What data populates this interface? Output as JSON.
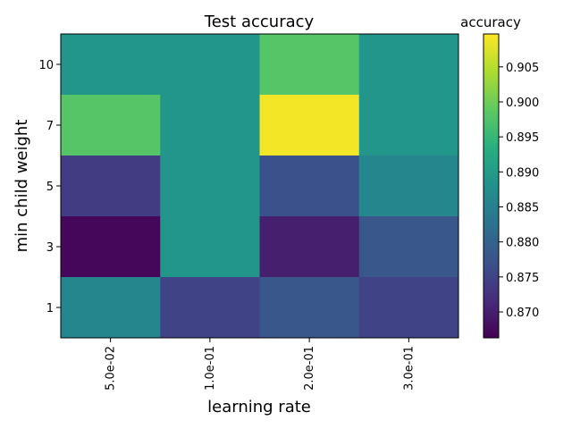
{
  "chart_data": {
    "type": "heatmap",
    "title": "Test accuracy",
    "xlabel": "learning rate",
    "ylabel": "min child weight",
    "x_categories": [
      "5.0e-02",
      "1.0e-01",
      "2.0e-01",
      "3.0e-01"
    ],
    "y_categories": [
      "10",
      "7",
      "5",
      "3",
      "1"
    ],
    "values": [
      [
        0.889,
        0.889,
        0.898,
        0.889
      ],
      [
        0.898,
        0.889,
        0.909,
        0.889
      ],
      [
        0.874,
        0.889,
        0.877,
        0.886
      ],
      [
        0.867,
        0.889,
        0.87,
        0.878
      ],
      [
        0.886,
        0.875,
        0.878,
        0.875
      ]
    ],
    "colorbar": {
      "label": "accuracy",
      "range": [
        0.8663,
        0.9097
      ],
      "ticks": [
        "0.870",
        "0.875",
        "0.880",
        "0.885",
        "0.890",
        "0.895",
        "0.900",
        "0.905"
      ],
      "colormap": "viridis"
    },
    "grid": false
  }
}
